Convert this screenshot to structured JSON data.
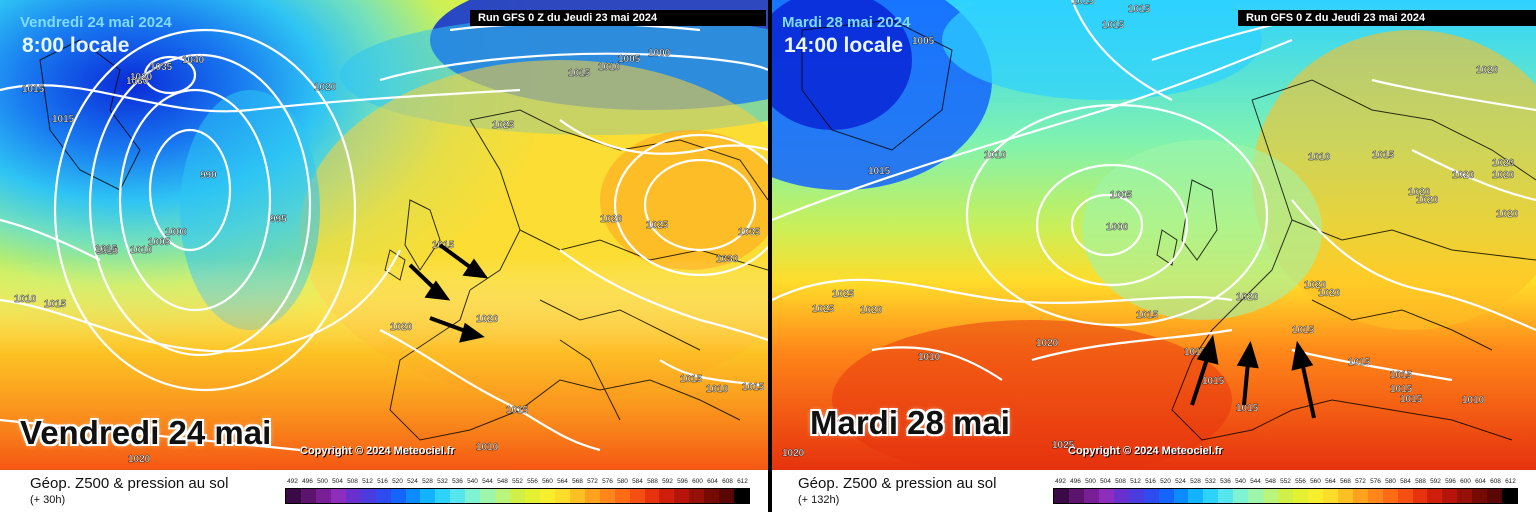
{
  "left_panel": {
    "date_small": "Vendredi 24 mai 2024",
    "time_label": "8:00 locale",
    "run_label": "Run GFS 0 Z du Jeudi 23 mai 2024",
    "big_date": "Vendredi 24 mai",
    "copyright": "Copyright © 2024 Meteociel.fr",
    "footer_title": "Géop. Z500 & pression au sol",
    "footer_hours": "(+ 30h)",
    "isobar_labels": [
      "1015",
      "1030",
      "1035",
      "1040",
      "1020",
      "1015",
      "1010",
      "1005",
      "1000",
      "1015",
      "1025",
      "1010",
      "1000",
      "1015",
      "990",
      "995",
      "1000",
      "1005",
      "1010",
      "1015",
      "1010",
      "1015",
      "1020",
      "1015",
      "1020",
      "1020",
      "1025",
      "1035",
      "1030",
      "1015",
      "1010",
      "1015",
      "1010",
      "1020"
    ]
  },
  "right_panel": {
    "date_small": "Mardi 28 mai 2024",
    "time_label": "14:00 locale",
    "run_label": "Run GFS 0 Z du Jeudi 23 mai 2024",
    "big_date": "Mardi 28 mai",
    "copyright": "Copyright © 2024 Meteociel.fr",
    "footer_title": "Géop. Z500 & pression au sol",
    "footer_hours": "(+ 132h)",
    "isobar_labels": [
      "1015",
      "1015",
      "1005",
      "1020",
      "1010",
      "1015",
      "1010",
      "1015",
      "1020",
      "1020",
      "1020",
      "1020",
      "1005",
      "1000",
      "1025",
      "1025",
      "1020",
      "1020",
      "1015",
      "1020",
      "1020",
      "1015",
      "1015",
      "1015",
      "1010",
      "1020",
      "1015",
      "1015",
      "1015",
      "1010",
      "1015",
      "1015",
      "1010",
      "1025",
      "1020",
      "1015",
      "1020",
      "1015"
    ]
  },
  "scale": {
    "labels": [
      "492",
      "496",
      "500",
      "504",
      "508",
      "512",
      "516",
      "520",
      "524",
      "528",
      "532",
      "536",
      "540",
      "544",
      "548",
      "552",
      "556",
      "560",
      "564",
      "568",
      "572",
      "576",
      "580",
      "584",
      "588",
      "592",
      "596",
      "600",
      "604",
      "608",
      "612"
    ],
    "colors": [
      "#3a0a46",
      "#5a146e",
      "#7a1e96",
      "#8e2dbd",
      "#6a2fd0",
      "#4b3ce0",
      "#2e4bf0",
      "#1464ff",
      "#0a8cff",
      "#12b4ff",
      "#2ed2ff",
      "#55e6f0",
      "#7ff2d2",
      "#9ef5ac",
      "#b9f57a",
      "#d0f046",
      "#e6f032",
      "#f7ee2e",
      "#ffdc2a",
      "#ffc024",
      "#ffa21e",
      "#ff8619",
      "#ff6a14",
      "#f54e12",
      "#e6320e",
      "#d01e0c",
      "#b4140a",
      "#961008",
      "#780a06",
      "#5a0604",
      "#000000"
    ]
  }
}
